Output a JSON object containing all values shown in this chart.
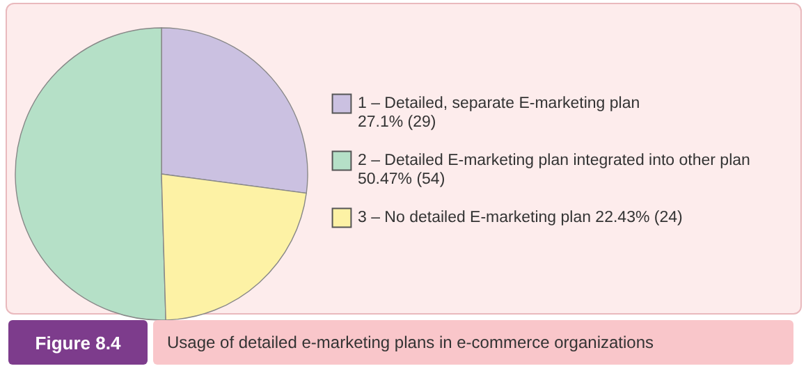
{
  "chart_data": {
    "type": "pie",
    "title": "Usage of detailed e-marketing plans in e-commerce organizations",
    "annotations": [
      "Figure 8.4"
    ],
    "categories": [
      "1 – Detailed, separate E-marketing plan",
      "2 – Detailed E-marketing plan integrated into other plan",
      "3 – No detailed E-marketing plan"
    ],
    "values": [
      27.1,
      50.47,
      22.43
    ],
    "value_labels": [
      "27.1% (29)",
      "50.47% (54)",
      "22.43% (24)"
    ],
    "colors": [
      "#cbc1e1",
      "#b5e0c7",
      "#fdf2a5"
    ],
    "legend": "right"
  }
}
